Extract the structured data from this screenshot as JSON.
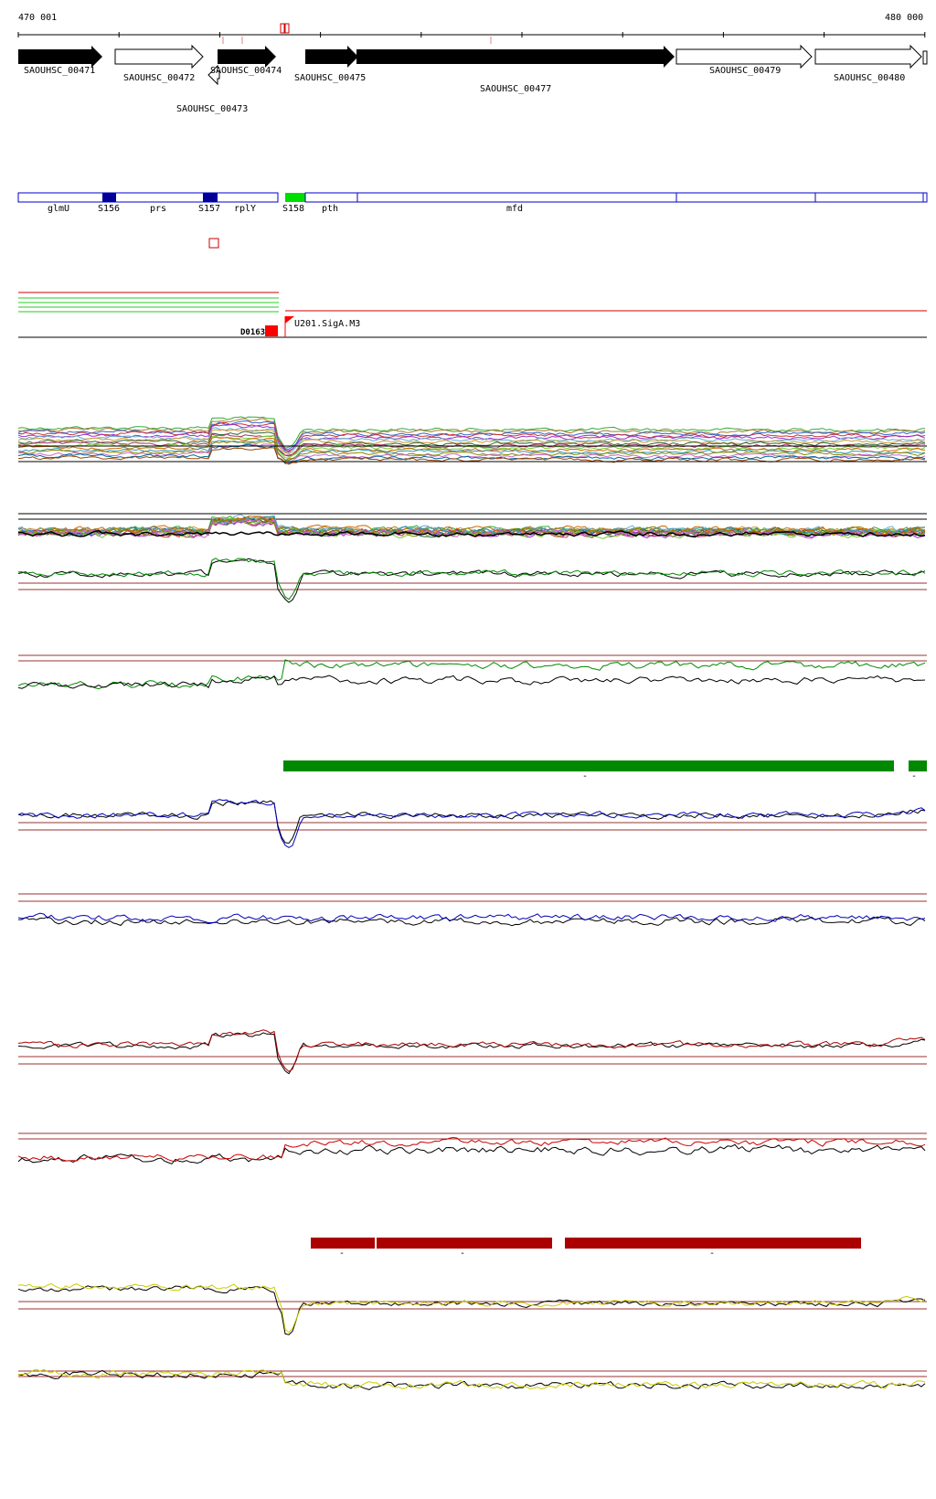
{
  "ruler": {
    "start": "470 001",
    "end": "480 000"
  },
  "genes": [
    {
      "name": "SAOUHSC_00471",
      "filled": true,
      "strand": "+"
    },
    {
      "name": "SAOUHSC_00472",
      "filled": false,
      "strand": "+"
    },
    {
      "name": "SAOUHSC_00473",
      "filled": false,
      "strand": "-"
    },
    {
      "name": "SAOUHSC_00474",
      "filled": true,
      "strand": "+"
    },
    {
      "name": "SAOUHSC_00475",
      "filled": true,
      "strand": "+"
    },
    {
      "name": "SAOUHSC_00477",
      "filled": true,
      "strand": "+"
    },
    {
      "name": "SAOUHSC_00479",
      "filled": false,
      "strand": "+"
    },
    {
      "name": "SAOUHSC_00480",
      "filled": false,
      "strand": "+"
    }
  ],
  "features": [
    "glmU",
    "S156",
    "prs",
    "S157",
    "rplY",
    "S158",
    "pth",
    "mfd"
  ],
  "feature_colors": {
    "outline": "#0000cc",
    "srna": "#000099",
    "highlight": "#00dd00"
  },
  "promoters": [
    {
      "name": "D0163",
      "color": "#ff0000"
    },
    {
      "name": "U201.SigA.M3",
      "color": "#ff0000"
    }
  ],
  "palette": {
    "green_bar": "#008800",
    "darkred_bar": "#aa0000",
    "blue": "#0000bb",
    "green": "#008800",
    "red": "#cc0000",
    "yellow": "#cccc00",
    "threshold": "#993333"
  },
  "tick_marks": [
    "-",
    "-",
    "-",
    "-",
    "-"
  ]
}
